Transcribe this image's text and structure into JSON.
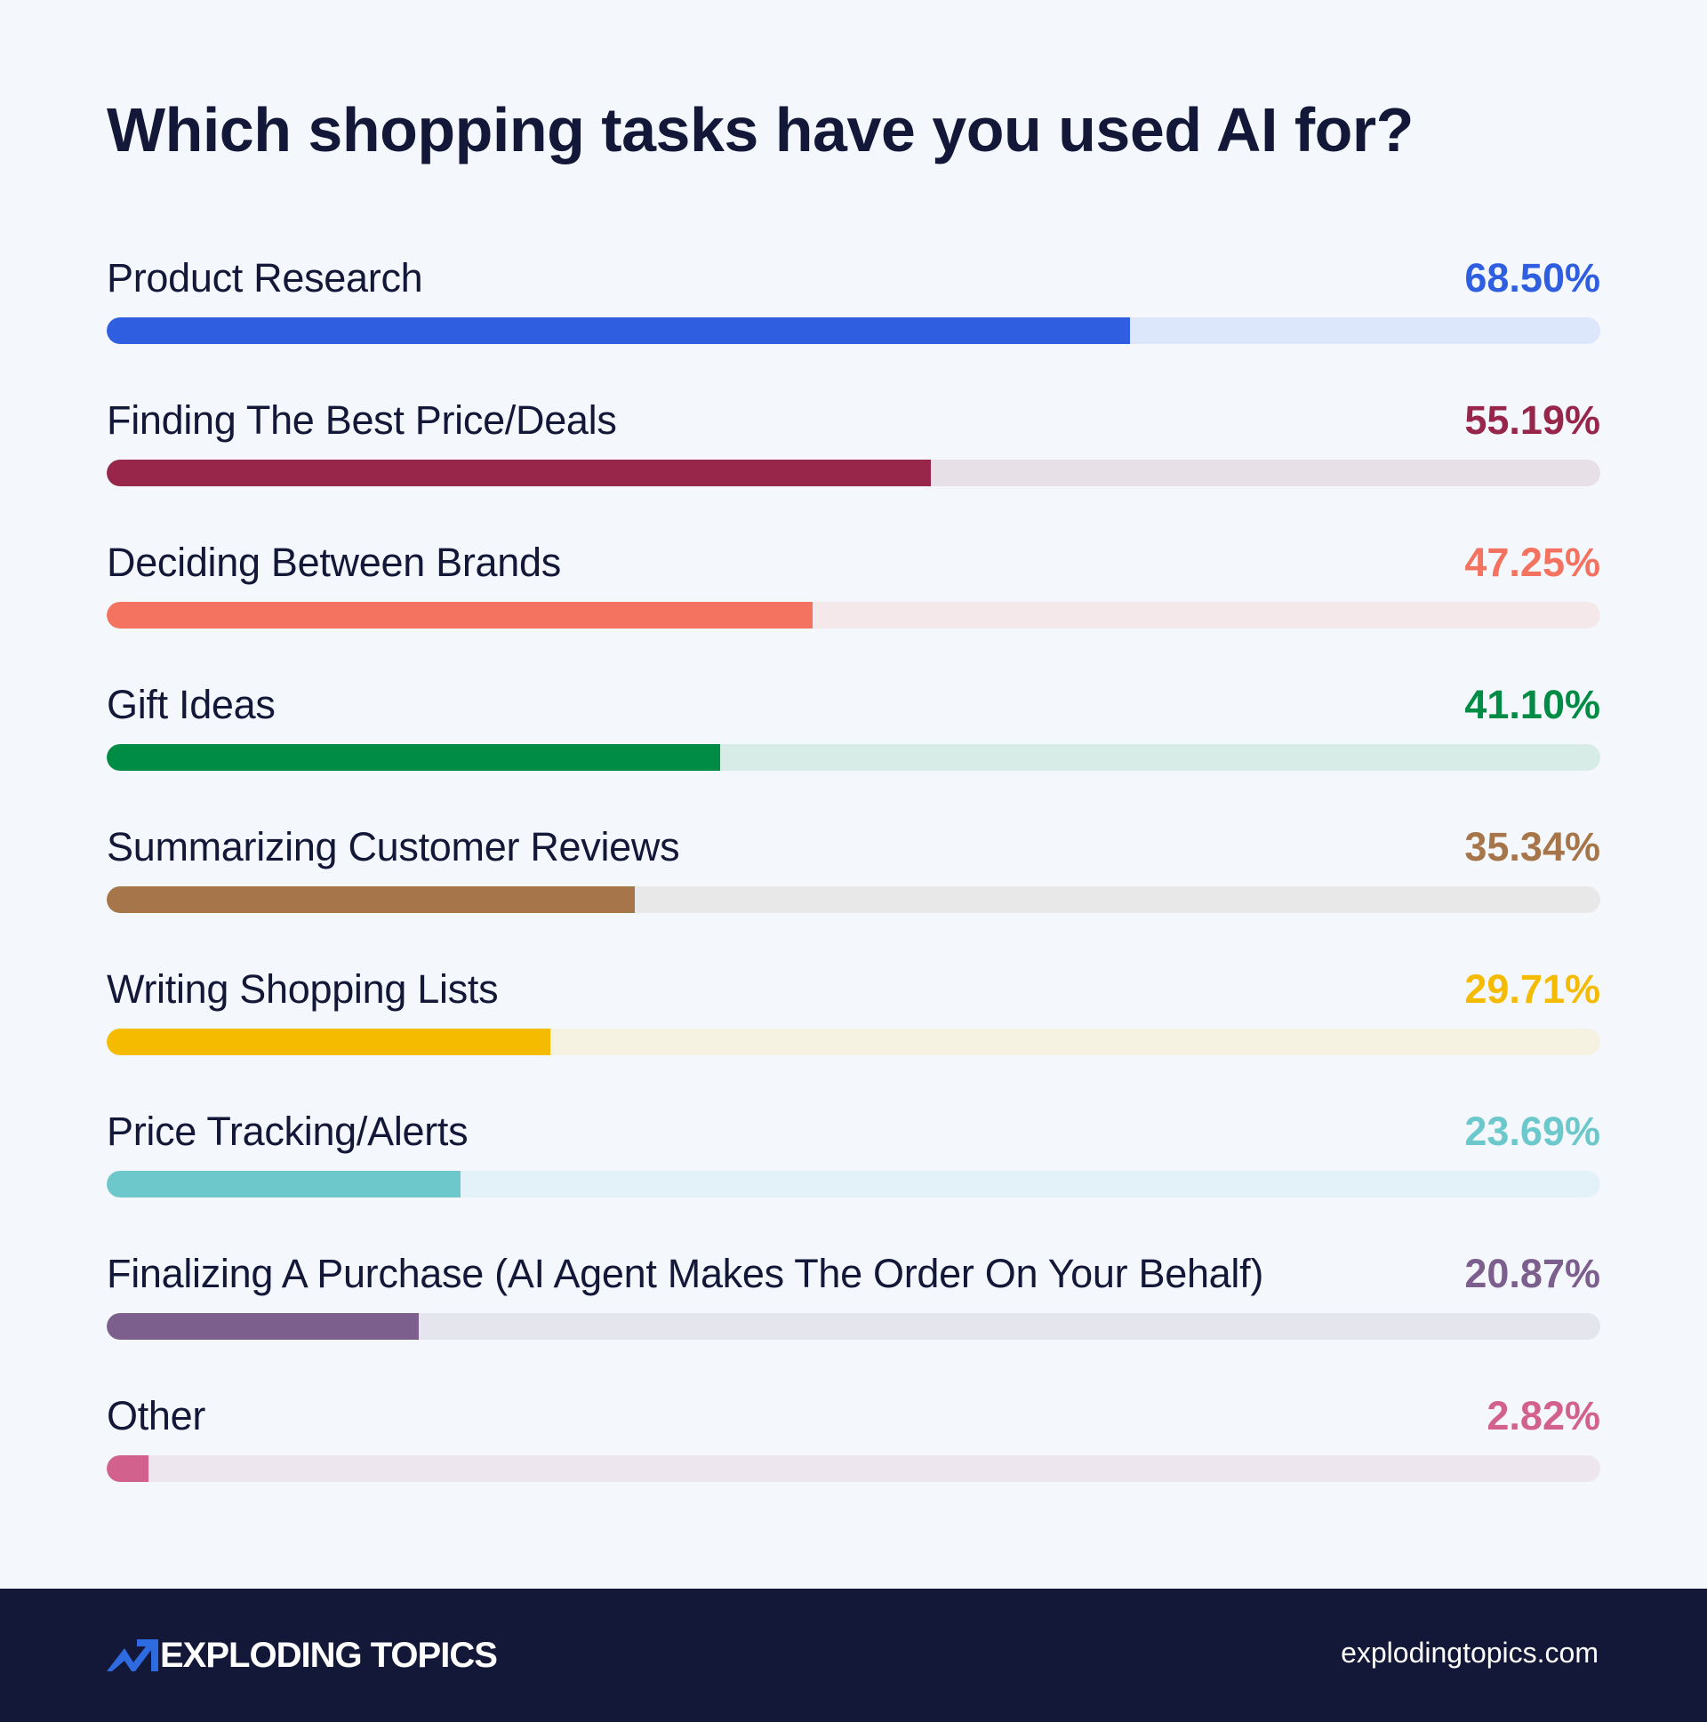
{
  "title": "Which shopping tasks have you used AI for?",
  "rows": [
    {
      "label": "Product Research",
      "value": "68.50%",
      "pct": 68.5,
      "color": "#2f5fe0",
      "track": "#dce7fb"
    },
    {
      "label": "Finding The Best Price/Deals",
      "value": "55.19%",
      "pct": 55.19,
      "color": "#97264a",
      "track": "#e8e0e7"
    },
    {
      "label": "Deciding Between Brands",
      "value": "47.25%",
      "pct": 47.25,
      "color": "#f47360",
      "track": "#f5e8ea"
    },
    {
      "label": "Gift Ideas",
      "value": "41.10%",
      "pct": 41.1,
      "color": "#008c44",
      "track": "#d7ebe7"
    },
    {
      "label": "Summarizing Customer Reviews",
      "value": "35.34%",
      "pct": 35.34,
      "color": "#a6754a",
      "track": "#e8e8e8"
    },
    {
      "label": "Writing Shopping Lists",
      "value": "29.71%",
      "pct": 29.71,
      "color": "#f5bb00",
      "track": "#f5f2e2"
    },
    {
      "label": "Price Tracking/Alerts",
      "value": "23.69%",
      "pct": 23.69,
      "color": "#6cc8cb",
      "track": "#e3f2f8"
    },
    {
      "label": "Finalizing A Purchase (AI Agent Makes The Order On Your Behalf)",
      "value": "20.87%",
      "pct": 20.87,
      "color": "#7d5f8e",
      "track": "#e5e5ee"
    },
    {
      "label": "Other",
      "value": "2.82%",
      "pct": 2.82,
      "color": "#d3618e",
      "track": "#eee6ee"
    }
  ],
  "footer": {
    "brand": "EXPLODING TOPICS",
    "logo_icon": "trend-arrow-icon",
    "url": "explodingtopics.com",
    "accent_color": "#2f6be0",
    "background": "#141838"
  },
  "chart_data": {
    "type": "bar",
    "orientation": "horizontal",
    "title": "Which shopping tasks have you used AI for?",
    "categories": [
      "Product Research",
      "Finding The Best Price/Deals",
      "Deciding Between Brands",
      "Gift Ideas",
      "Summarizing Customer Reviews",
      "Writing Shopping Lists",
      "Price Tracking/Alerts",
      "Finalizing A Purchase (AI Agent Makes The Order On Your Behalf)",
      "Other"
    ],
    "values": [
      68.5,
      55.19,
      47.25,
      41.1,
      35.34,
      29.71,
      23.69,
      20.87,
      2.82
    ],
    "unit": "%",
    "xlabel": "",
    "ylabel": "",
    "xlim": [
      0,
      100
    ],
    "grid": false,
    "legend": null,
    "colors": [
      "#2f5fe0",
      "#97264a",
      "#f47360",
      "#008c44",
      "#a6754a",
      "#f5bb00",
      "#6cc8cb",
      "#7d5f8e",
      "#d3618e"
    ]
  }
}
